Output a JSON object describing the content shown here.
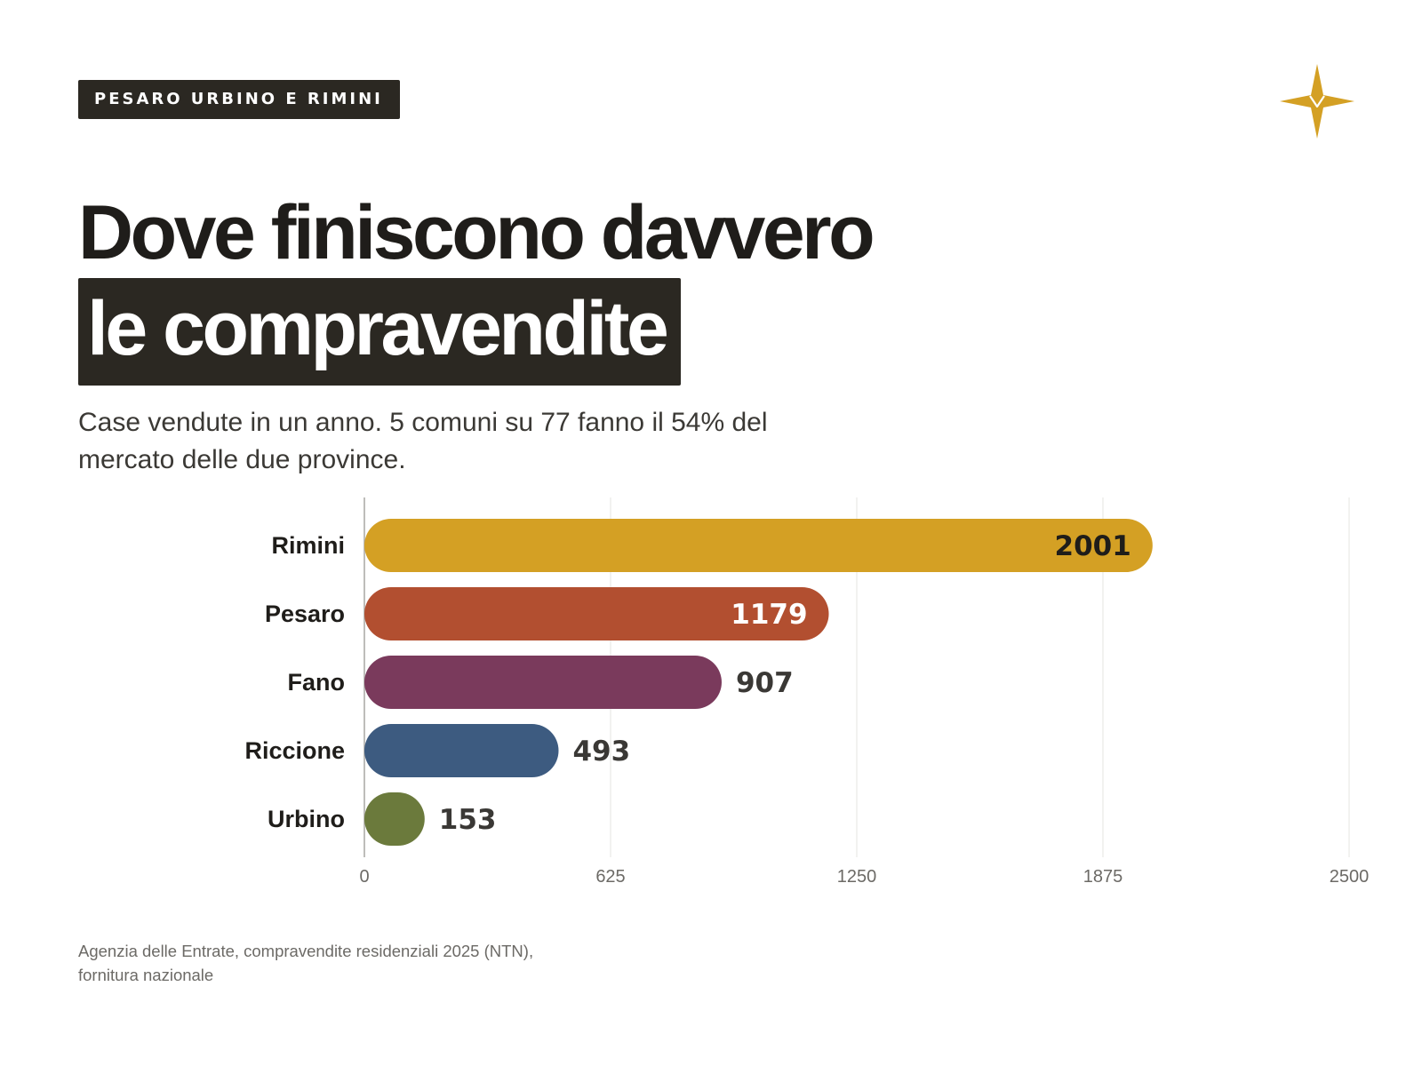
{
  "header": {
    "tag": "PESARO URBINO E RIMINI",
    "logo_icon": "gold-four-point-star-icon",
    "logo_color": "#D4A024"
  },
  "title": {
    "line1": "Dove finiscono davvero",
    "line2": "le compravendite"
  },
  "subtitle": "Case vendute in un anno. 5 comuni su 77 fanno il 54% del mercato delle due province.",
  "source": {
    "line1": "Agenzia delle Entrate, compravendite residenziali 2025 (NTN),",
    "line2": "fornitura nazionale"
  },
  "chart_data": {
    "type": "bar",
    "orientation": "horizontal",
    "categories": [
      "Rimini",
      "Pesaro",
      "Fano",
      "Riccione",
      "Urbino"
    ],
    "values": [
      2001,
      1179,
      907,
      493,
      153
    ],
    "value_labels": [
      "2001",
      "1179",
      "907",
      "493",
      "153"
    ],
    "colors": [
      "#D4A024",
      "#B24F30",
      "#7A3A5C",
      "#3D5B80",
      "#6B7A3C"
    ],
    "label_colors": [
      "#1f1d1a",
      "#ffffff",
      "#3a3835",
      "#3a3835",
      "#3a3835"
    ],
    "label_inside": [
      true,
      true,
      false,
      false,
      false
    ],
    "xlim": [
      0,
      2500
    ],
    "xticks": [
      0,
      625,
      1250,
      1875,
      2500
    ],
    "xtick_labels": [
      "0",
      "625",
      "1250",
      "1875",
      "2500"
    ],
    "grid": true
  }
}
